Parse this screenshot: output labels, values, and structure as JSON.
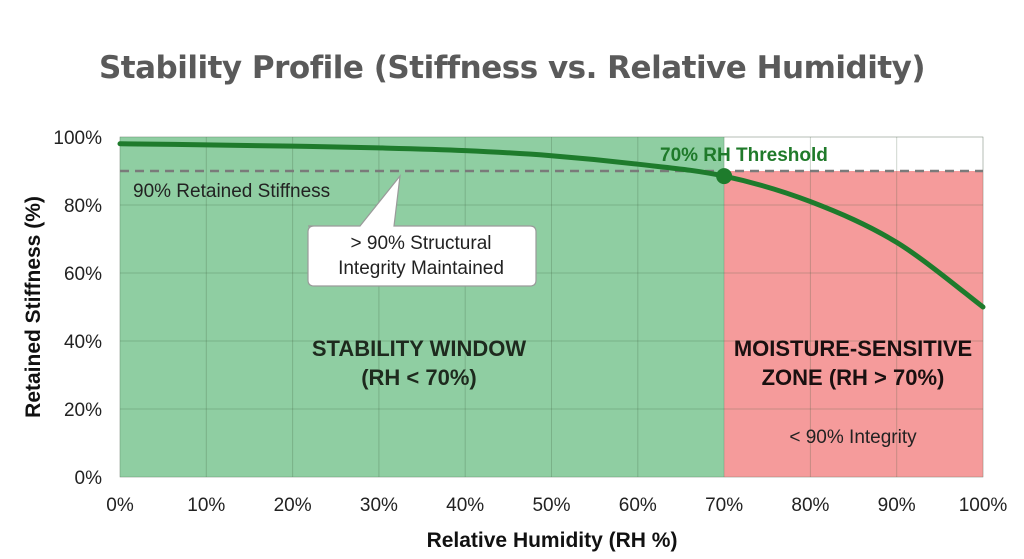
{
  "title": "Stability Profile (Stiffness vs. Relative Humidity)",
  "chart_data": {
    "type": "line",
    "title": "Stability Profile (Stiffness vs. Relative Humidity)",
    "xlabel": "Relative Humidity (RH %)",
    "ylabel": "Retained Stiffness (%)",
    "xlim": [
      0,
      100
    ],
    "ylim": [
      0,
      100
    ],
    "x_ticks": [
      "0%",
      "10%",
      "20%",
      "30%",
      "40%",
      "50%",
      "60%",
      "70%",
      "80%",
      "90%",
      "100%"
    ],
    "y_ticks": [
      "0%",
      "20%",
      "40%",
      "60%",
      "80%",
      "100%"
    ],
    "grid": true,
    "series": [
      {
        "name": "Retained Stiffness",
        "color": "#1e7b2c",
        "x": [
          0,
          10,
          20,
          30,
          40,
          50,
          60,
          70,
          80,
          90,
          100
        ],
        "y": [
          98,
          97.7,
          97.3,
          96.8,
          96,
          94.5,
          92,
          88.5,
          81,
          69,
          50
        ]
      }
    ],
    "reference_lines": [
      {
        "type": "horizontal",
        "value": 90,
        "label": "90% Retained Stiffness",
        "style": "dashed",
        "color": "#7a7a7a"
      }
    ],
    "highlight_point": {
      "x": 70,
      "y": 88.5,
      "label": "70% RH Threshold"
    },
    "regions": [
      {
        "x_range": [
          0,
          70
        ],
        "color": "#8fcea2",
        "label_line1": "STABILITY WINDOW",
        "label_line2": "(RH < 70%)"
      },
      {
        "x_range": [
          70,
          100
        ],
        "color": "#f59b9b",
        "label_line1": "MOISTURE-SENSITIVE",
        "label_line2": "ZONE (RH > 70%)",
        "note": "< 90% Integrity"
      }
    ],
    "annotations": [
      {
        "text_line1": "> 90% Structural",
        "text_line2": "Integrity Maintained",
        "type": "callout"
      }
    ]
  },
  "labels": {
    "ref_line": "90% Retained Stiffness",
    "threshold": "70% RH Threshold",
    "callout_1": "> 90% Structural",
    "callout_2": "Integrity Maintained",
    "green_1": "STABILITY WINDOW",
    "green_2": "(RH < 70%)",
    "red_1": "MOISTURE-SENSITIVE",
    "red_2": "ZONE (RH > 70%)",
    "red_note": "< 90% Integrity"
  }
}
